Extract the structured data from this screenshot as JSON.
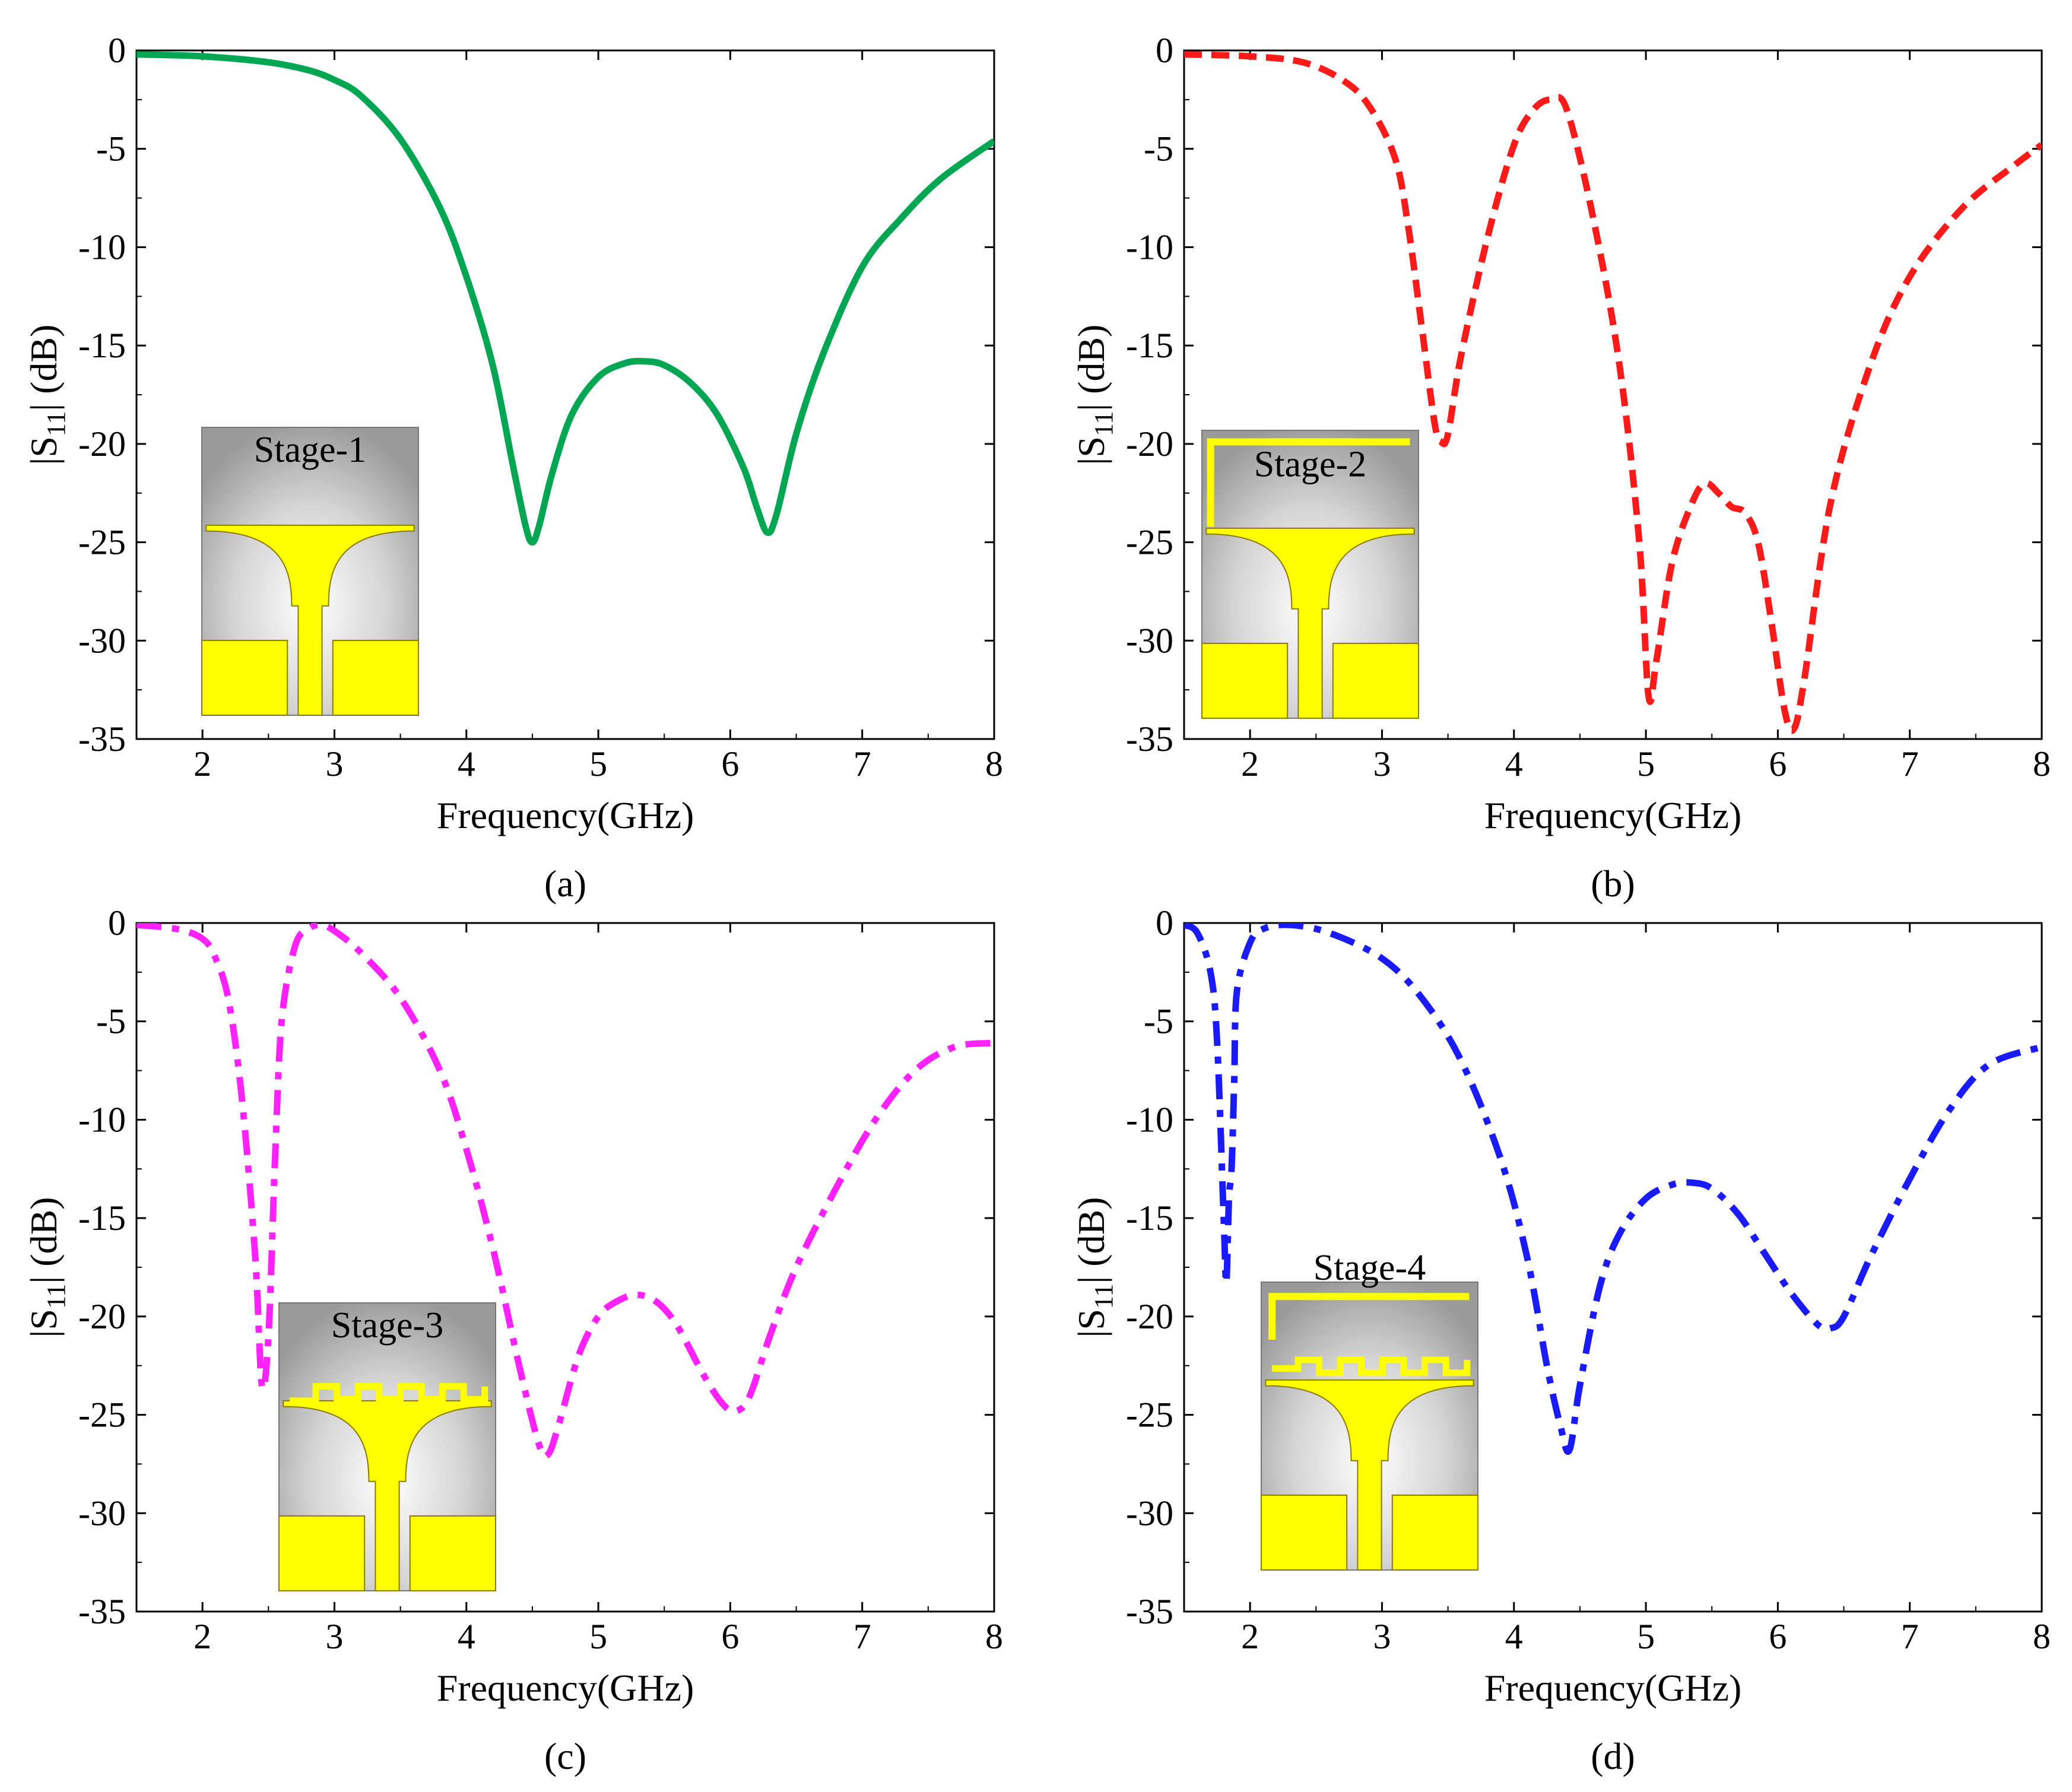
{
  "chart_data": [
    {
      "id": "a",
      "type": "line",
      "caption": "(a)",
      "inset_label": "Stage-1",
      "xlabel": "Frequency(GHz)",
      "ylabel": "|S11| (dB)",
      "ylabel_main": "|S",
      "ylabel_sub": "11",
      "ylabel_rest": "| (dB)",
      "xlim": [
        1.5,
        8
      ],
      "ylim": [
        -35,
        0
      ],
      "xticks": [
        "2",
        "3",
        "4",
        "5",
        "6",
        "7",
        "8"
      ],
      "yticks": [
        "0",
        "-5",
        "-10",
        "-15",
        "-20",
        "-25",
        "-30",
        "-35"
      ],
      "color": "#00a651",
      "linestyle": "solid",
      "series": [
        {
          "name": "Stage-1",
          "x": [
            1.5,
            2.0,
            2.5,
            2.8,
            3.0,
            3.2,
            3.5,
            3.8,
            4.0,
            4.2,
            4.35,
            4.45,
            4.5,
            4.55,
            4.65,
            4.8,
            5.0,
            5.2,
            5.35,
            5.5,
            5.7,
            5.9,
            6.1,
            6.2,
            6.28,
            6.35,
            6.5,
            6.7,
            7.0,
            7.3,
            7.6,
            8.0
          ],
          "y": [
            -0.2,
            -0.3,
            -0.6,
            -1.0,
            -1.5,
            -2.3,
            -4.5,
            -8.0,
            -11.5,
            -16.0,
            -21.0,
            -24.2,
            -25.0,
            -24.2,
            -21.5,
            -18.5,
            -16.6,
            -15.9,
            -15.8,
            -16.0,
            -16.9,
            -18.5,
            -21.2,
            -23.2,
            -24.5,
            -23.6,
            -19.5,
            -15.5,
            -11.0,
            -8.5,
            -6.5,
            -4.6
          ]
        }
      ]
    },
    {
      "id": "b",
      "type": "line",
      "caption": "(b)",
      "inset_label": "Stage-2",
      "xlabel": "Frequency(GHz)",
      "ylabel": "|S11| (dB)",
      "ylabel_main": "|S",
      "ylabel_sub": "11",
      "ylabel_rest": "| (dB)",
      "xlim": [
        1.5,
        8
      ],
      "ylim": [
        -35,
        0
      ],
      "xticks": [
        "2",
        "3",
        "4",
        "5",
        "6",
        "7",
        "8"
      ],
      "yticks": [
        "0",
        "-5",
        "-10",
        "-15",
        "-20",
        "-25",
        "-30",
        "-35"
      ],
      "color": "#ff1a1a",
      "linestyle": "dashed",
      "series": [
        {
          "name": "Stage-2",
          "x": [
            1.5,
            2.0,
            2.4,
            2.7,
            2.9,
            3.1,
            3.2,
            3.3,
            3.4,
            3.45,
            3.5,
            3.6,
            3.8,
            4.0,
            4.15,
            4.28,
            4.4,
            4.6,
            4.8,
            4.95,
            5.02,
            5.08,
            5.2,
            5.35,
            5.45,
            5.55,
            5.65,
            5.75,
            5.85,
            5.95,
            6.05,
            6.12,
            6.2,
            6.4,
            6.7,
            7.0,
            7.4,
            7.8,
            8.0
          ],
          "y": [
            -0.2,
            -0.3,
            -0.6,
            -1.5,
            -2.8,
            -5.5,
            -9.0,
            -14.0,
            -19.0,
            -19.9,
            -19.5,
            -15.5,
            -9.5,
            -4.8,
            -3.0,
            -2.5,
            -3.0,
            -8.5,
            -16.0,
            -25.0,
            -32.8,
            -31.0,
            -26.0,
            -23.0,
            -22.0,
            -22.5,
            -23.2,
            -23.5,
            -25.0,
            -29.0,
            -33.5,
            -34.5,
            -32.0,
            -23.0,
            -16.0,
            -11.5,
            -8.0,
            -5.8,
            -4.8
          ]
        }
      ]
    },
    {
      "id": "c",
      "type": "line",
      "caption": "(c)",
      "inset_label": "Stage-3",
      "xlabel": "Frequency(GHz)",
      "ylabel": "|S11| (dB)",
      "ylabel_main": "|S",
      "ylabel_sub": "11",
      "ylabel_rest": "| (dB)",
      "xlim": [
        1.5,
        8
      ],
      "ylim": [
        -35,
        0
      ],
      "xticks": [
        "2",
        "3",
        "4",
        "5",
        "6",
        "7",
        "8"
      ],
      "yticks": [
        "0",
        "-5",
        "-10",
        "-15",
        "-20",
        "-25",
        "-30",
        "-35"
      ],
      "color": "#ff22ff",
      "linestyle": "dashdot",
      "series": [
        {
          "name": "Stage-3",
          "x": [
            1.5,
            1.8,
            2.0,
            2.1,
            2.2,
            2.3,
            2.4,
            2.45,
            2.5,
            2.55,
            2.6,
            2.7,
            2.8,
            2.9,
            3.0,
            3.2,
            3.5,
            3.8,
            4.0,
            4.2,
            4.4,
            4.55,
            4.62,
            4.7,
            4.85,
            5.0,
            5.15,
            5.3,
            5.45,
            5.6,
            5.8,
            5.95,
            6.05,
            6.15,
            6.3,
            6.5,
            6.8,
            7.1,
            7.4,
            7.7,
            8.0
          ],
          "y": [
            -0.1,
            -0.3,
            -0.8,
            -1.8,
            -4.0,
            -9.0,
            -17.0,
            -23.5,
            -21.0,
            -12.0,
            -5.0,
            -1.2,
            -0.3,
            -0.1,
            -0.4,
            -1.5,
            -3.8,
            -7.5,
            -11.5,
            -16.5,
            -22.5,
            -26.5,
            -27.0,
            -25.5,
            -22.0,
            -20.0,
            -19.2,
            -18.9,
            -19.3,
            -20.5,
            -23.0,
            -24.5,
            -24.8,
            -24.0,
            -21.0,
            -17.5,
            -13.5,
            -10.0,
            -7.5,
            -6.3,
            -6.1
          ]
        }
      ]
    },
    {
      "id": "d",
      "type": "line",
      "caption": "(d)",
      "inset_label": "Stage-4",
      "xlabel": "Frequency(GHz)",
      "ylabel": "|S11| (dB)",
      "ylabel_main": "|S",
      "ylabel_sub": "11",
      "ylabel_rest": "| (dB)",
      "xlim": [
        1.5,
        8
      ],
      "ylim": [
        -35,
        0
      ],
      "xticks": [
        "2",
        "3",
        "4",
        "5",
        "6",
        "7",
        "8"
      ],
      "yticks": [
        "0",
        "-5",
        "-10",
        "-15",
        "-20",
        "-25",
        "-30",
        "-35"
      ],
      "color": "#1a1aff",
      "linestyle": "dashdot",
      "series": [
        {
          "name": "Stage-4",
          "x": [
            1.5,
            1.6,
            1.7,
            1.75,
            1.8,
            1.82,
            1.84,
            1.86,
            1.88,
            1.9,
            2.0,
            2.1,
            2.3,
            2.6,
            3.0,
            3.3,
            3.6,
            3.9,
            4.1,
            4.25,
            4.35,
            4.42,
            4.5,
            4.65,
            4.8,
            5.0,
            5.2,
            5.35,
            5.5,
            5.7,
            5.9,
            6.1,
            6.3,
            6.4,
            6.5,
            6.7,
            7.0,
            7.3,
            7.6,
            8.0
          ],
          "y": [
            -0.1,
            -0.5,
            -2.5,
            -6.0,
            -15.0,
            -18.3,
            -14.0,
            -12.5,
            -8.0,
            -3.5,
            -1.0,
            -0.3,
            -0.1,
            -0.5,
            -1.8,
            -3.8,
            -7.0,
            -12.0,
            -17.0,
            -22.5,
            -25.5,
            -26.8,
            -23.5,
            -18.5,
            -15.8,
            -14.0,
            -13.3,
            -13.2,
            -13.5,
            -14.8,
            -16.8,
            -18.8,
            -20.4,
            -20.6,
            -20.0,
            -17.0,
            -13.0,
            -9.5,
            -7.2,
            -6.3
          ]
        }
      ]
    }
  ]
}
